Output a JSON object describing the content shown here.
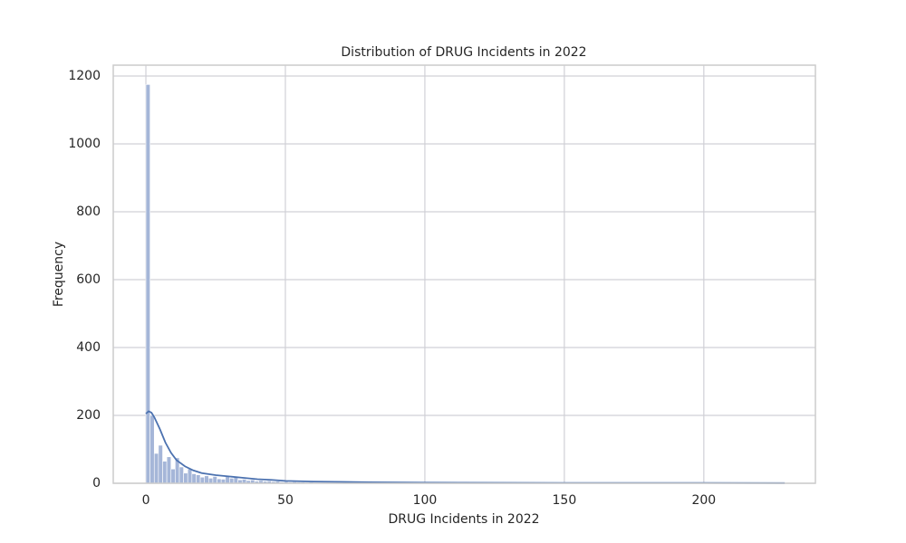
{
  "chart_data": {
    "type": "histogram",
    "title": "Distribution of DRUG Incidents in 2022",
    "x_label": "DRUG Incidents in 2022",
    "y_label": "Frequency",
    "bins": [
      0,
      1.5,
      3,
      4.5,
      6,
      7.5,
      9,
      10.5,
      12,
      13.5,
      15,
      16.5,
      18,
      19.5,
      21,
      22.5,
      24,
      25.5,
      27,
      28.5,
      30,
      31.5,
      33,
      34.5,
      36,
      37.5,
      39,
      40.5,
      42,
      43.5,
      45,
      46.5,
      48,
      49.5,
      51,
      52.5,
      54,
      55.5,
      57,
      58.5,
      60,
      61.5,
      63,
      64.5,
      66,
      67.5,
      69,
      70.5,
      72,
      73.5,
      75,
      76.5,
      78,
      79.5,
      81,
      82.5,
      84,
      85.5,
      87,
      88.5,
      90,
      91.5,
      93,
      94.5,
      96,
      97.5,
      99,
      100.5,
      102,
      103.5,
      105,
      106.5,
      108,
      109.5,
      111,
      112.5,
      114,
      115.5,
      117,
      118.5,
      120,
      121.5,
      123,
      124.5,
      126,
      127.5,
      129,
      130.5,
      132,
      133.5,
      135,
      136.5,
      138,
      139.5,
      141,
      142.5,
      144,
      145.5,
      147,
      148.5,
      150,
      151.5,
      153,
      154.5,
      156,
      157.5,
      159,
      160.5,
      162,
      163.5,
      165,
      166.5,
      168,
      169.5,
      171,
      172.5,
      174,
      175.5,
      177,
      178.5,
      180,
      181.5,
      183,
      184.5,
      186,
      187.5,
      189,
      190.5,
      192,
      193.5,
      195,
      196.5,
      198,
      199.5,
      201,
      202.5,
      204,
      205.5,
      207,
      208.5,
      210,
      211.5,
      213,
      214.5,
      216,
      217.5,
      219,
      220.5,
      222,
      223.5,
      225,
      226.5,
      228,
      229.5
    ],
    "values": [
      1175,
      200,
      88,
      112,
      65,
      78,
      42,
      75,
      48,
      30,
      42,
      28,
      25,
      18,
      22,
      15,
      20,
      13,
      12,
      20,
      15,
      20,
      10,
      12,
      8,
      10,
      6,
      8,
      6,
      7,
      5,
      6,
      4,
      5,
      3,
      4,
      3,
      3,
      2,
      3,
      2,
      2,
      1,
      2,
      1,
      1,
      2,
      1,
      1,
      1,
      1,
      0,
      1,
      1,
      0,
      1,
      1,
      0,
      1,
      0,
      1,
      0,
      0,
      1,
      0,
      1,
      0,
      0,
      1,
      0,
      0,
      1,
      0,
      0,
      1,
      0,
      0,
      0,
      1,
      0,
      0,
      0,
      1,
      0,
      0,
      0,
      0,
      1,
      0,
      0,
      0,
      1,
      0,
      0,
      0,
      0,
      0,
      0,
      1,
      0,
      0,
      0,
      0,
      1,
      0,
      0,
      0,
      0,
      0,
      0,
      1,
      0,
      0,
      0,
      0,
      0,
      0,
      0,
      0,
      1,
      0,
      0,
      0,
      0,
      0,
      0,
      0,
      0,
      0,
      0,
      1,
      0,
      0,
      0,
      0,
      0,
      0,
      0,
      0,
      0,
      0,
      0,
      0,
      0,
      0,
      0,
      0,
      1,
      0,
      0,
      0,
      0,
      1
    ],
    "color": "#a5b6d8",
    "kde": {
      "color": "#4c72b0",
      "x": [
        0,
        1,
        2,
        3,
        5,
        7,
        9,
        11,
        14,
        17,
        20,
        25,
        30,
        35,
        40,
        45,
        50,
        60,
        80,
        100,
        150,
        200,
        229
      ],
      "y": [
        205,
        212,
        208,
        195,
        160,
        120,
        90,
        68,
        50,
        38,
        30,
        24,
        20,
        16,
        12,
        10,
        7,
        5,
        3,
        2,
        1,
        1,
        0.5
      ]
    },
    "xlim": [
      -11.7,
      240
    ],
    "ylim": [
      0,
      1232
    ],
    "xticks": [
      0,
      50,
      100,
      150,
      200
    ],
    "yticks": [
      0,
      200,
      400,
      600,
      800,
      1000,
      1200
    ],
    "grid": true
  }
}
